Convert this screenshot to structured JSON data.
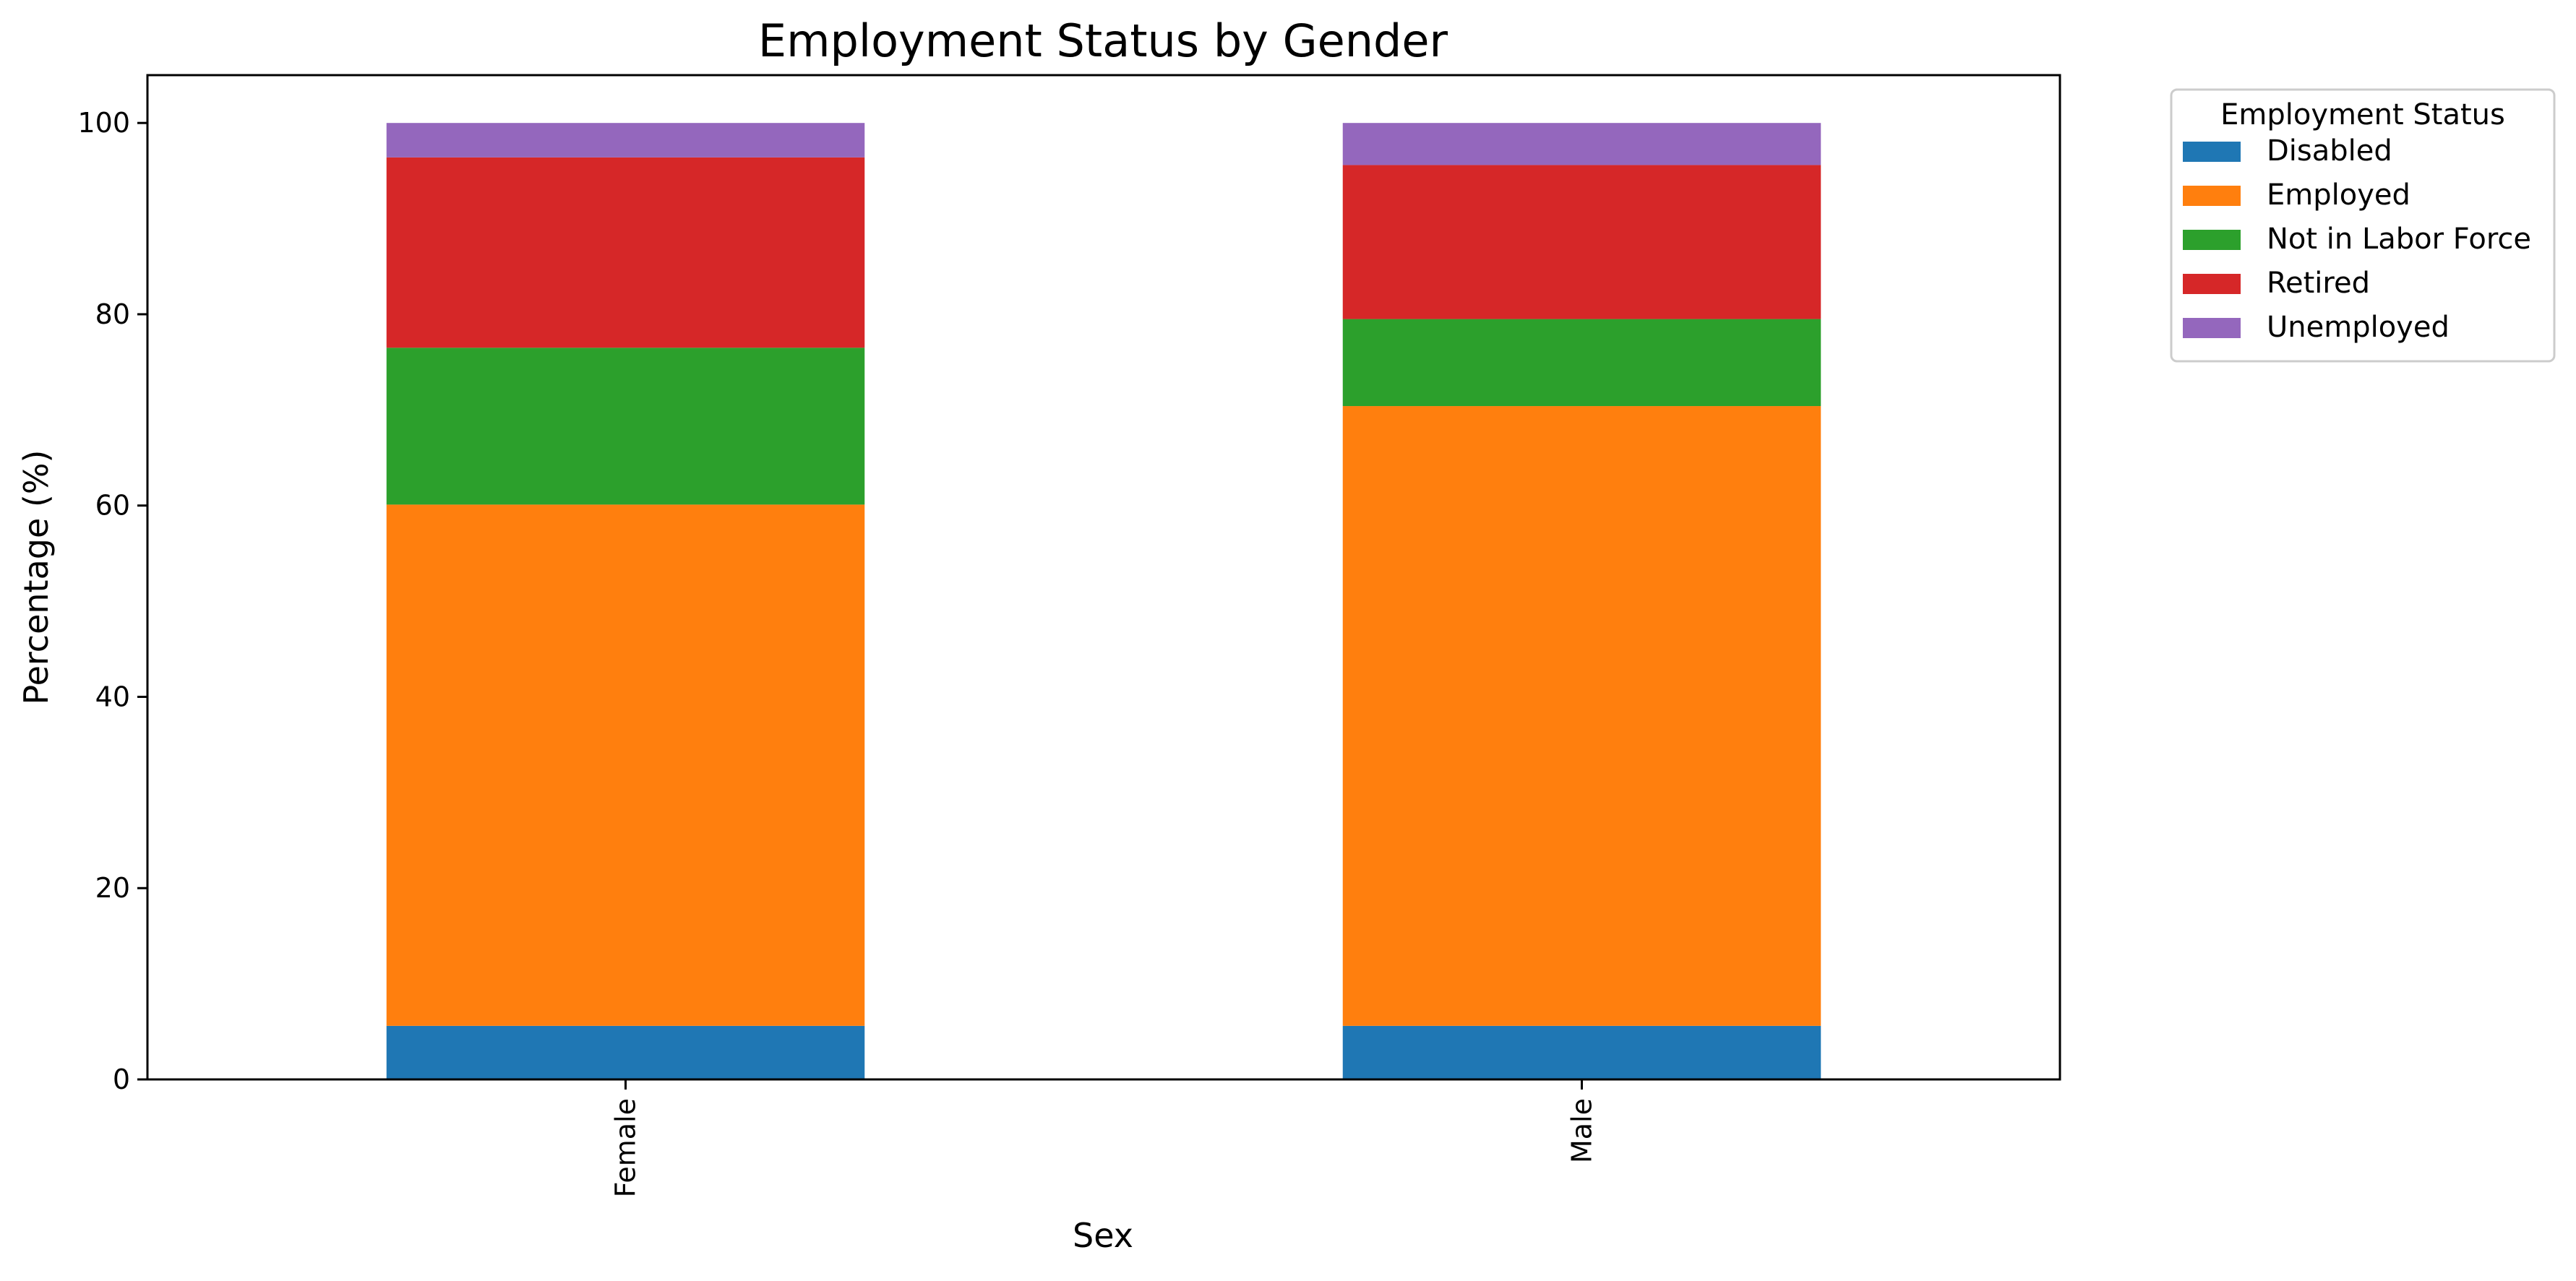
{
  "chart_data": {
    "type": "bar",
    "stacked": true,
    "title": "Employment Status by Gender",
    "xlabel": "Sex",
    "ylabel": "Percentage (%)",
    "categories": [
      "Female",
      "Male"
    ],
    "ylim": [
      0,
      105
    ],
    "yticks": [
      "0",
      "20",
      "40",
      "60",
      "80",
      "100"
    ],
    "legend": {
      "title": "Employment Status",
      "placement": "outside-top-right"
    },
    "grid": false,
    "series": [
      {
        "name": "Disabled",
        "color": "#1f77b4",
        "values": [
          5.6,
          5.6
        ]
      },
      {
        "name": "Employed",
        "color": "#ff7f0e",
        "values": [
          54.5,
          64.8
        ]
      },
      {
        "name": "Not in Labor Force",
        "color": "#2ca02c",
        "values": [
          16.4,
          9.1
        ]
      },
      {
        "name": "Retired",
        "color": "#d62728",
        "values": [
          19.9,
          16.1
        ]
      },
      {
        "name": "Unemployed",
        "color": "#9467bd",
        "values": [
          3.6,
          4.4
        ]
      }
    ]
  }
}
